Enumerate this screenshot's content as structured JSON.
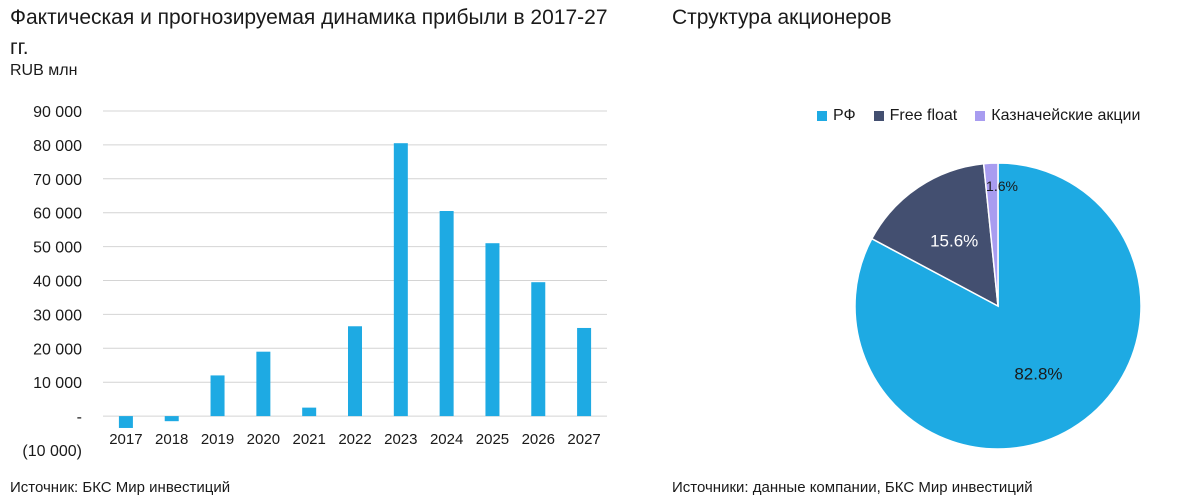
{
  "left": {
    "title": "Фактическая и прогнозируемая динамика прибыли в 2017-27 гг.",
    "unit": "RUB млн",
    "source": "Источник: БКС Мир инвестиций"
  },
  "right": {
    "title": "Структура акционеров",
    "source": "Источники: данные компании, БКС Мир инвестиций"
  },
  "chart_data": [
    {
      "type": "bar",
      "title": "Фактическая и прогнозируемая динамика прибыли в 2017-27 гг.",
      "ylabel": "RUB млн",
      "categories": [
        "2017",
        "2018",
        "2019",
        "2020",
        "2021",
        "2022",
        "2023",
        "2024",
        "2025",
        "2026",
        "2027"
      ],
      "values": [
        -3500,
        -1500,
        12000,
        19000,
        2500,
        26500,
        80500,
        60500,
        51000,
        39500,
        26000
      ],
      "ylim": [
        -10000,
        90000
      ],
      "yticks": [
        -10000,
        0,
        10000,
        20000,
        30000,
        40000,
        50000,
        60000,
        70000,
        80000,
        90000
      ],
      "ytick_labels": [
        "(10 000)",
        "-",
        "10 000",
        "20 000",
        "30 000",
        "40 000",
        "50 000",
        "60 000",
        "70 000",
        "80 000",
        "90 000"
      ],
      "grid": true,
      "color": "#1eaae3"
    },
    {
      "type": "pie",
      "title": "Структура акционеров",
      "labels": [
        "РФ",
        "Free float",
        "Казначейские акции"
      ],
      "values": [
        82.8,
        15.6,
        1.6
      ],
      "value_labels": [
        "82.8%",
        "15.6%",
        "1.6%"
      ],
      "colors": [
        "#1eaae3",
        "#434f70",
        "#a89cf0"
      ],
      "legend": "top"
    }
  ]
}
